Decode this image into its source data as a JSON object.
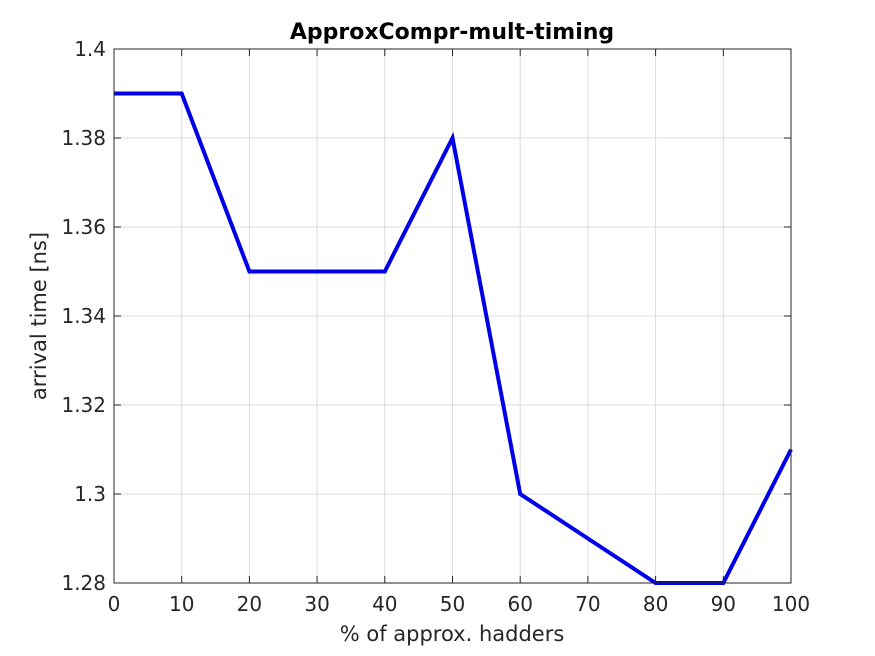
{
  "chart_data": {
    "type": "line",
    "title": "ApproxCompr-mult-timing",
    "xlabel": "% of approx. hadders",
    "ylabel": "arrival time [ns]",
    "xlim": [
      0,
      100
    ],
    "ylim": [
      1.28,
      1.4
    ],
    "xticks": [
      0,
      10,
      20,
      30,
      40,
      50,
      60,
      70,
      80,
      90,
      100
    ],
    "xtick_labels": [
      "0",
      "10",
      "20",
      "30",
      "40",
      "50",
      "60",
      "70",
      "80",
      "90",
      "100"
    ],
    "yticks": [
      1.28,
      1.3,
      1.32,
      1.34,
      1.36,
      1.38,
      1.4
    ],
    "ytick_labels": [
      "1.28",
      "1.3",
      "1.32",
      "1.34",
      "1.36",
      "1.38",
      "1.4"
    ],
    "grid": true,
    "legend": "none",
    "series": [
      {
        "color": "#0000e6",
        "x": [
          0,
          10,
          20,
          30,
          40,
          50,
          60,
          70,
          80,
          90,
          100
        ],
        "y": [
          1.39,
          1.39,
          1.35,
          1.35,
          1.35,
          1.38,
          1.3,
          1.29,
          1.28,
          1.28,
          1.31
        ]
      }
    ]
  }
}
